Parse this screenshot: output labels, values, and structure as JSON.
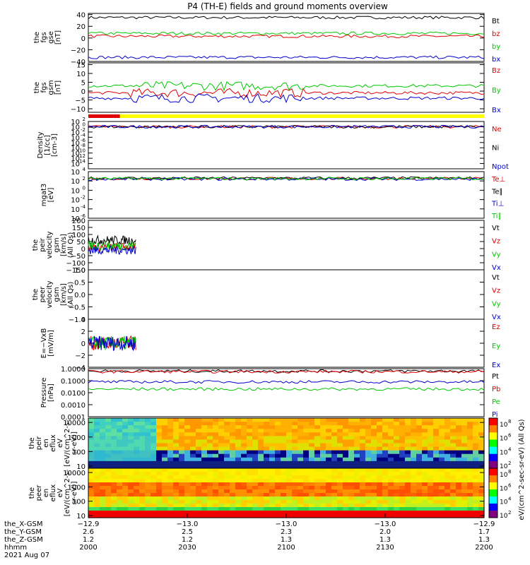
{
  "title": "P4 (TH-E) fields and ground moments overview",
  "colors": {
    "black": "#000000",
    "red": "#e00000",
    "green": "#00c800",
    "blue": "#0000d0",
    "yellow": "#ffff00"
  },
  "chart_data": [
    {
      "id": "fgs-gse",
      "type": "line",
      "ylabel": [
        "the",
        "fgs",
        "gse",
        "[nT]"
      ],
      "ylim": [
        -40,
        42
      ],
      "yticks": [
        "40",
        "20",
        "0",
        "−20",
        "−40"
      ],
      "ytick_values": [
        40,
        20,
        0,
        -20,
        -40
      ],
      "series": [
        {
          "name": "Bt",
          "color": "black",
          "level": 35
        },
        {
          "name": "bz",
          "color": "red",
          "level": 3
        },
        {
          "name": "by",
          "color": "green",
          "level": 8
        },
        {
          "name": "bx",
          "color": "blue",
          "level": -33
        }
      ]
    },
    {
      "id": "fgs-gsm",
      "type": "line",
      "ylabel": [
        "the",
        "fgs",
        "gsm",
        "[nT]"
      ],
      "ylim": [
        -12,
        16
      ],
      "yticks": [
        "15",
        "10",
        "5",
        "0",
        "−5",
        "−10"
      ],
      "ytick_values": [
        15,
        10,
        5,
        0,
        -5,
        -10
      ],
      "series": [
        {
          "name": "Bz",
          "color": "red",
          "level": -1
        },
        {
          "name": "By",
          "color": "green",
          "level": 3
        },
        {
          "name": "Bx",
          "color": "blue",
          "level": -4
        }
      ]
    },
    {
      "id": "density",
      "type": "line",
      "ylabel": [
        "Density",
        "[1/cc]",
        "[cm-3]"
      ],
      "log": true,
      "ylim": [
        -16,
        2
      ],
      "yticks": [
        "10",
        "10",
        "10",
        "10",
        "10",
        "10",
        "10",
        "10",
        "10"
      ],
      "ytick_exps": [
        "2",
        "0",
        "-2",
        "-4",
        "-6",
        "-8",
        "-10",
        "-12",
        "-14"
      ],
      "ytick_values": [
        2,
        0,
        -2,
        -4,
        -6,
        -8,
        -10,
        -12,
        -14
      ],
      "series": [
        {
          "name": "Ne",
          "color": "red",
          "level": 0
        },
        {
          "name": "Ni",
          "color": "black",
          "level": 0
        },
        {
          "name": "Npot",
          "color": "blue",
          "level": 0
        }
      ]
    },
    {
      "id": "temp",
      "type": "line",
      "ylabel": [
        "mgat3",
        "[eV]"
      ],
      "log": true,
      "ylim": [
        -6,
        4
      ],
      "yticks": [
        "10",
        "10",
        "10",
        "10",
        "10",
        "10"
      ],
      "ytick_exps": [
        "4",
        "2",
        "0",
        "-2",
        "-4",
        "-6"
      ],
      "ytick_values": [
        4,
        2,
        0,
        -2,
        -4,
        -6
      ],
      "series": [
        {
          "name": "Te⊥",
          "color": "red",
          "level": 2.5
        },
        {
          "name": "Te∥",
          "color": "black",
          "level": 2.6
        },
        {
          "name": "Ti⊥",
          "color": "blue",
          "level": 2.4
        },
        {
          "name": "Ti∥",
          "color": "green",
          "level": 2.5
        }
      ]
    },
    {
      "id": "peir-vel",
      "type": "line",
      "ylabel": [
        "the",
        "peir",
        "velocity",
        "gsm",
        "[km/s]",
        "(All Qs)"
      ],
      "ylim": [
        -150,
        200
      ],
      "yticks": [
        "200",
        "150",
        "100",
        "50",
        "0",
        "−50",
        "−100",
        "−150"
      ],
      "ytick_values": [
        200,
        150,
        100,
        50,
        0,
        -50,
        -100,
        -150
      ],
      "series": [
        {
          "name": "Vt",
          "color": "black",
          "level": 60
        },
        {
          "name": "Vz",
          "color": "red",
          "level": 10
        },
        {
          "name": "Vy",
          "color": "green",
          "level": 20
        },
        {
          "name": "Vx",
          "color": "blue",
          "level": -10
        }
      ]
    },
    {
      "id": "peer-vel",
      "type": "line",
      "ylabel": [
        "the",
        "peer",
        "velocity",
        "gsm",
        "[km/s]",
        "(All Qs)"
      ],
      "ylim": [
        -1,
        1
      ],
      "yticks": [
        "1.0",
        "0.5",
        "0.0",
        "−0.5",
        "−1.0"
      ],
      "ytick_values": [
        1,
        0.5,
        0,
        -0.5,
        -1
      ],
      "series": [
        {
          "name": "Vt",
          "color": "black"
        },
        {
          "name": "Vz",
          "color": "red"
        },
        {
          "name": "Vy",
          "color": "green"
        },
        {
          "name": "Vx",
          "color": "blue"
        }
      ]
    },
    {
      "id": "efield",
      "type": "line",
      "ylabel": [
        "E=−VxB",
        "[mV/m]"
      ],
      "ylim": [
        -4,
        4
      ],
      "yticks": [
        "4",
        "2",
        "0",
        "−2",
        "−4"
      ],
      "ytick_values": [
        4,
        2,
        0,
        -2,
        -4
      ],
      "series": [
        {
          "name": "Ez",
          "color": "red",
          "level": 0
        },
        {
          "name": "Ey",
          "color": "green",
          "level": 0
        },
        {
          "name": "Ex",
          "color": "blue",
          "level": 0
        }
      ]
    },
    {
      "id": "pressure",
      "type": "line",
      "ylabel": [
        "Pressure",
        "[nPa]"
      ],
      "log": true,
      "ylim": [
        -4,
        0
      ],
      "yticks": [
        "1.0000",
        "0.1000",
        "0.0100",
        "0.0010",
        "0.0001"
      ],
      "ytick_values": [
        0,
        -1,
        -2,
        -3,
        -4
      ],
      "series": [
        {
          "name": "Pt",
          "color": "black",
          "level": -0.2
        },
        {
          "name": "Pb",
          "color": "red",
          "level": -0.25
        },
        {
          "name": "Pe",
          "color": "green",
          "level": -1.7
        },
        {
          "name": "Pi",
          "color": "blue",
          "level": -1.1
        }
      ]
    },
    {
      "id": "peir-eflux",
      "type": "heatmap",
      "ylabel": [
        "the",
        "peir",
        "en",
        "eflux",
        "eV",
        "[eV/(cm^2-s-",
        "sr-eV)]"
      ],
      "log": true,
      "ylim": [
        0.85,
        4.3
      ],
      "yticks": [
        "10000",
        "1000",
        "100",
        "10"
      ],
      "ytick_values": [
        4,
        3,
        2,
        1
      ]
    },
    {
      "id": "peer-eflux",
      "type": "heatmap",
      "ylabel": [
        "the",
        "peer",
        "en",
        "eflux",
        "eV",
        "[eV/(cm^2-s-",
        "sr-eV)]"
      ],
      "log": true,
      "ylim": [
        0.85,
        4.3
      ],
      "yticks": [
        "10000",
        "1000",
        "100",
        "10"
      ],
      "ytick_values": [
        4,
        3,
        2,
        1
      ]
    }
  ],
  "colorbars": [
    {
      "label": "eV/(cm^2-sec-sr-eV) (All Qs)",
      "ticks_exp": [
        "8",
        "6",
        "4",
        "2"
      ]
    },
    {
      "label": "eV/(cm^2-sec-sr-eV)",
      "ticks_exp": [
        "8",
        "6",
        "4",
        "2"
      ]
    }
  ],
  "mode_bar": {
    "colors": [
      "red",
      "yellow"
    ],
    "split_fraction": 0.08
  },
  "xaxis": {
    "row_labels": [
      "the_X-GSM",
      "the_Y-GSM",
      "the_Z-GSM",
      "hhmm",
      "2021 Aug 07"
    ],
    "ticks": [
      {
        "pos": 0,
        "x": "−12.9",
        "y": "2.6",
        "z": "1.2",
        "t": "2000"
      },
      {
        "pos": 0.25,
        "x": "−13.0",
        "y": "2.5",
        "z": "1.2",
        "t": "2030"
      },
      {
        "pos": 0.5,
        "x": "−13.0",
        "y": "2.3",
        "z": "1.3",
        "t": "2100"
      },
      {
        "pos": 0.75,
        "x": "−13.0",
        "y": "2.0",
        "z": "1.3",
        "t": "2130"
      },
      {
        "pos": 1,
        "x": "−12.9",
        "y": "1.7",
        "z": "1.3",
        "t": "2200"
      }
    ]
  }
}
